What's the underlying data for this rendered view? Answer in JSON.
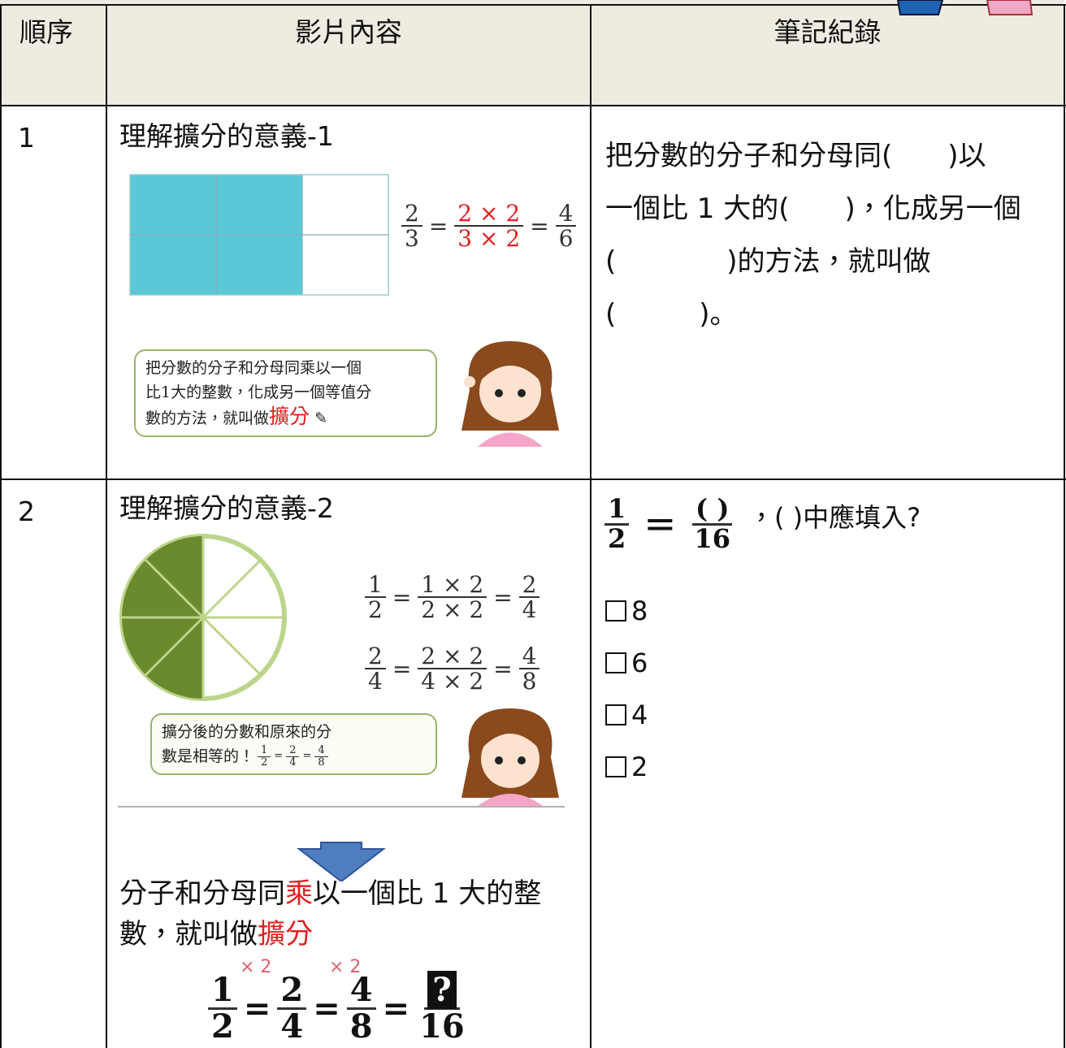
{
  "header": {
    "columns": [
      "順序",
      "影片內容",
      "筆記紀錄"
    ]
  },
  "rows": [
    {
      "order": "1",
      "title": "理解擴分的意義-1",
      "figure": {
        "equation": [
          {
            "num": "2",
            "den": "3"
          },
          {
            "num": "2 × 2",
            "den": "3 × 2"
          },
          {
            "num": "4",
            "den": "6"
          }
        ],
        "bubble": [
          "把分數的分子和分母同乘以一個",
          "比1大的整數，化成另一個等值分",
          "數的方法，就叫做"
        ],
        "bubble_emphasis": "擴分"
      },
      "notes": [
        "把分數的分子和分母同(　　)以",
        "一個比 1 大的(　　)，化成另一個",
        "(　　　　)的方法，就叫做",
        "(　　　)。"
      ]
    },
    {
      "order": "2",
      "title": "理解擴分的意義-2",
      "figure": {
        "equations": [
          [
            {
              "num": "1",
              "den": "2"
            },
            {
              "num": "1 × 2",
              "den": "2 × 2"
            },
            {
              "num": "2",
              "den": "4"
            }
          ],
          [
            {
              "num": "2",
              "den": "4"
            },
            {
              "num": "2 × 2",
              "den": "4 × 2"
            },
            {
              "num": "4",
              "den": "8"
            }
          ]
        ],
        "bubble": [
          "擴分後的分數和原來的分",
          "數是相等的！"
        ],
        "bubble_fractions": [
          {
            "num": "1",
            "den": "2"
          },
          {
            "num": "2",
            "den": "4"
          },
          {
            "num": "4",
            "den": "8"
          }
        ]
      },
      "summary": [
        "分子和分母同",
        "乘",
        "以一個比 1 大的整數，就叫做",
        "擴分"
      ],
      "chain": {
        "multipliers": [
          "× 2",
          "× 2"
        ],
        "fractions": [
          {
            "num": "1",
            "den": "2"
          },
          {
            "num": "2",
            "den": "4"
          },
          {
            "num": "4",
            "den": "8"
          },
          {
            "num": "?",
            "den": "16"
          }
        ]
      },
      "notes": {
        "question": {
          "left": {
            "num": "1",
            "den": "2"
          },
          "right": {
            "num": "( )",
            "den": "16"
          },
          "text": "，( )中應填入?"
        },
        "options": [
          "8",
          "6",
          "4",
          "2"
        ]
      }
    }
  ]
}
